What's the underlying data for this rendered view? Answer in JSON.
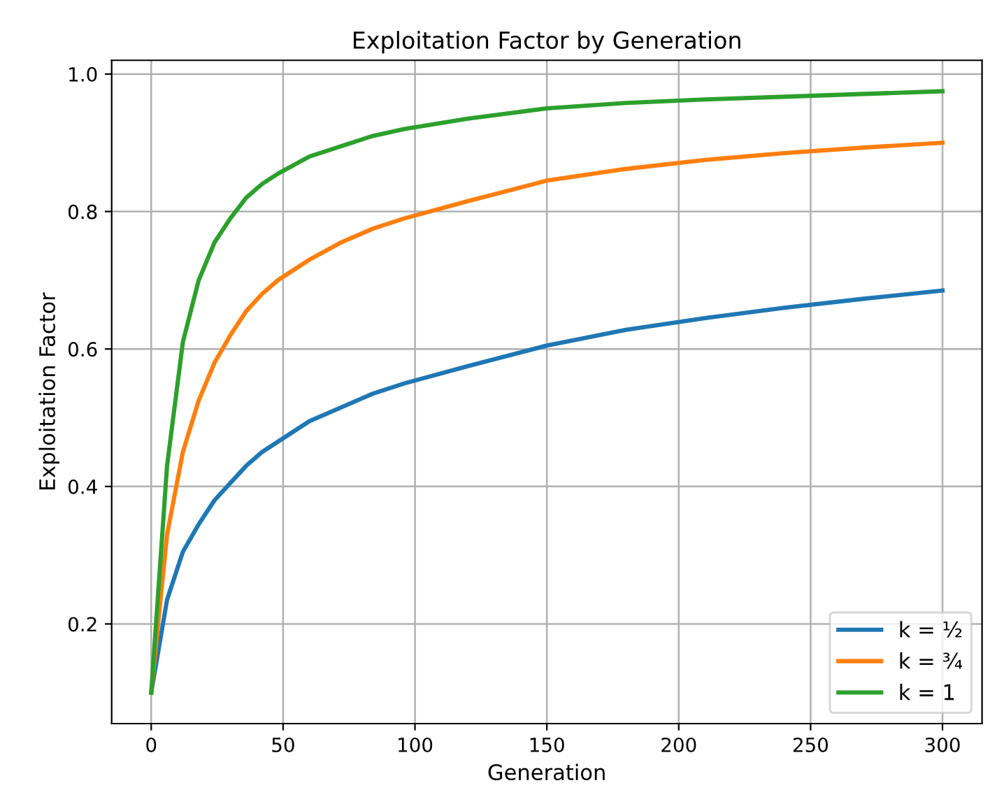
{
  "chart_data": {
    "type": "line",
    "title": "Exploitation Factor by Generation",
    "xlabel": "Generation",
    "ylabel": "Exploitation Factor",
    "x": [
      0,
      6,
      12,
      18,
      24,
      30,
      36,
      42,
      48,
      60,
      72,
      84,
      96,
      120,
      150,
      180,
      210,
      240,
      270,
      300
    ],
    "series": [
      {
        "name": "k = ½",
        "color": "#1f77b4",
        "values": [
          0.1,
          0.235,
          0.305,
          0.345,
          0.38,
          0.405,
          0.43,
          0.45,
          0.465,
          0.495,
          0.515,
          0.535,
          0.55,
          0.575,
          0.605,
          0.628,
          0.645,
          0.66,
          0.673,
          0.685
        ]
      },
      {
        "name": "k = ¾",
        "color": "#ff7f0e",
        "values": [
          0.1,
          0.33,
          0.45,
          0.525,
          0.58,
          0.62,
          0.655,
          0.68,
          0.7,
          0.73,
          0.755,
          0.775,
          0.79,
          0.815,
          0.845,
          0.862,
          0.875,
          0.885,
          0.893,
          0.9
        ]
      },
      {
        "name": "k = 1",
        "color": "#2ca02c",
        "values": [
          0.1,
          0.43,
          0.61,
          0.7,
          0.755,
          0.79,
          0.82,
          0.84,
          0.855,
          0.88,
          0.895,
          0.91,
          0.92,
          0.935,
          0.95,
          0.958,
          0.963,
          0.967,
          0.971,
          0.975
        ]
      }
    ],
    "xlim": [
      -15,
      315
    ],
    "ylim": [
      0.055,
      1.02
    ],
    "xticks": [
      0,
      50,
      100,
      150,
      200,
      250,
      300
    ],
    "yticks": [
      0.2,
      0.4,
      0.6,
      0.8,
      {
        "value": 1.0,
        "label": "1.0"
      }
    ],
    "grid": true,
    "legend": "lower right",
    "marker": "none",
    "line_style": "solid"
  }
}
